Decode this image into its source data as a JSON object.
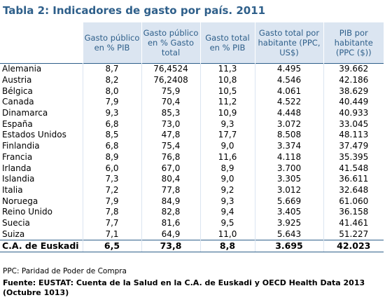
{
  "title": "Tabla 2: Indicadores de gasto por país. 2011",
  "headers": [
    "",
    "Gasto público en % PIB",
    "Gasto público en % Gasto total",
    "Gasto total en % PIB",
    "Gasto total por habitante (PPC, US$)",
    "PIB por habitante (PPC ($))"
  ],
  "rows": [
    [
      "Alemania",
      "8,7",
      "76,4524",
      "11,3",
      "4.495",
      "39.662"
    ],
    [
      "Austria",
      "8,2",
      "76,2408",
      "10,8",
      "4.546",
      "42.186"
    ],
    [
      "Bélgica",
      "8,0",
      "75,9",
      "10,5",
      "4.061",
      "38.629"
    ],
    [
      "Canada",
      "7,9",
      "70,4",
      "11,2",
      "4.522",
      "40.449"
    ],
    [
      "Dinamarca",
      "9,3",
      "85,3",
      "10,9",
      "4.448",
      "40.933"
    ],
    [
      "España",
      "6,8",
      "73,0",
      "9,3",
      "3.072",
      "33.045"
    ],
    [
      "Estados Unidos",
      "8,5",
      "47,8",
      "17,7",
      "8.508",
      "48.113"
    ],
    [
      "Finlandia",
      "6,8",
      "75,4",
      "9,0",
      "3.374",
      "37.479"
    ],
    [
      "Francia",
      "8,9",
      "76,8",
      "11,6",
      "4.118",
      "35.395"
    ],
    [
      "Irlanda",
      "6,0",
      "67,0",
      "8,9",
      "3.700",
      "41.548"
    ],
    [
      "Islandia",
      "7,3",
      "80,4",
      "9,0",
      "3.305",
      "36.611"
    ],
    [
      "Italia",
      "7,2",
      "77,8",
      "9,2",
      "3.012",
      "32.648"
    ],
    [
      "Noruega",
      "7,9",
      "84,9",
      "9,3",
      "5.669",
      "61.060"
    ],
    [
      "Reino Unido",
      "7,8",
      "82,8",
      "9,4",
      "3.405",
      "36.158"
    ],
    [
      "Suecia",
      "7,7",
      "81,6",
      "9,5",
      "3.925",
      "41.461"
    ],
    [
      "Suiza",
      "7,1",
      "64,9",
      "11,0",
      "5.643",
      "51.227"
    ]
  ],
  "total": [
    "C.A. de Euskadi",
    "6,5",
    "73,8",
    "8,8",
    "3.695",
    "42.023"
  ],
  "note": "PPC: Paridad de Poder de Compra",
  "source": "Fuente: EUSTAT: Cuenta de la Salud en la C.A. de Euskadi y OECD Health Data 2013 (Octubre 1013)",
  "colors": {
    "header_bg": "#dbe5f1",
    "accent": "#2e5f8a"
  }
}
